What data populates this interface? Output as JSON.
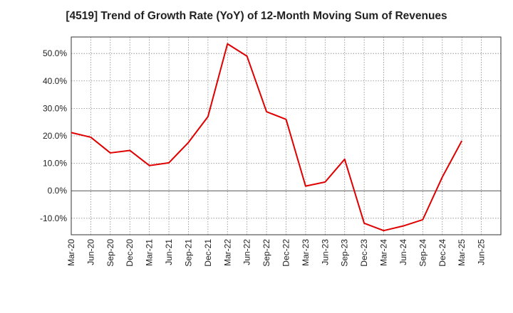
{
  "chart_data": {
    "type": "line",
    "title": "[4519]  Trend of Growth Rate (YoY) of 12-Month Moving Sum of Revenues",
    "xlabel": "",
    "ylabel": "",
    "x_tick_labels": [
      "Mar-20",
      "Jun-20",
      "Sep-20",
      "Dec-20",
      "Mar-21",
      "Jun-21",
      "Sep-21",
      "Dec-21",
      "Mar-22",
      "Jun-22",
      "Sep-22",
      "Dec-22",
      "Mar-23",
      "Jun-23",
      "Sep-23",
      "Dec-23",
      "Mar-24",
      "Jun-24",
      "Sep-24",
      "Dec-24",
      "Mar-25",
      "Jun-25"
    ],
    "y_ticks": [
      -10,
      0,
      10,
      20,
      30,
      40,
      50
    ],
    "y_tick_labels": [
      "-10.0%",
      "0.0%",
      "10.0%",
      "20.0%",
      "30.0%",
      "40.0%",
      "50.0%"
    ],
    "ylim": [
      -16,
      56
    ],
    "grid": true,
    "series": [
      {
        "color": "#e00000",
        "x": [
          "Mar-20",
          "Jun-20",
          "Sep-20",
          "Dec-20",
          "Mar-21",
          "Jun-21",
          "Sep-21",
          "Dec-21",
          "Mar-22",
          "Jun-22",
          "Sep-22",
          "Dec-22",
          "Mar-23",
          "Jun-23",
          "Sep-23",
          "Dec-23",
          "Mar-24",
          "Jun-24",
          "Sep-24",
          "Dec-24",
          "Mar-25"
        ],
        "values": [
          21.2,
          19.5,
          13.8,
          14.7,
          9.2,
          10.2,
          17.6,
          27.0,
          53.5,
          49.0,
          28.8,
          26.0,
          1.7,
          3.2,
          11.5,
          -11.8,
          -14.5,
          -12.8,
          -10.5,
          5.0,
          18.2
        ]
      }
    ]
  }
}
